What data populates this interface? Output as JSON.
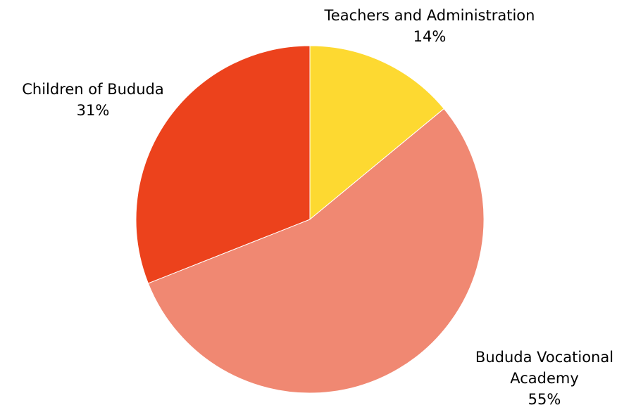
{
  "chart_data": {
    "type": "pie",
    "title": "",
    "slices": [
      {
        "label": "Teachers and Administration",
        "value": 14,
        "value_label": "14%",
        "color": "#fdd931"
      },
      {
        "label": "Bududa Vocational Academy",
        "label_lines": [
          "Bududa Vocational",
          "Academy"
        ],
        "value": 55,
        "value_label": "55%",
        "color": "#f08872"
      },
      {
        "label": "Children of Bududa",
        "value": 31,
        "value_label": "31%",
        "color": "#ec421c"
      }
    ],
    "start_angle": "12 o'clock",
    "direction": "clockwise",
    "legend": "none"
  }
}
